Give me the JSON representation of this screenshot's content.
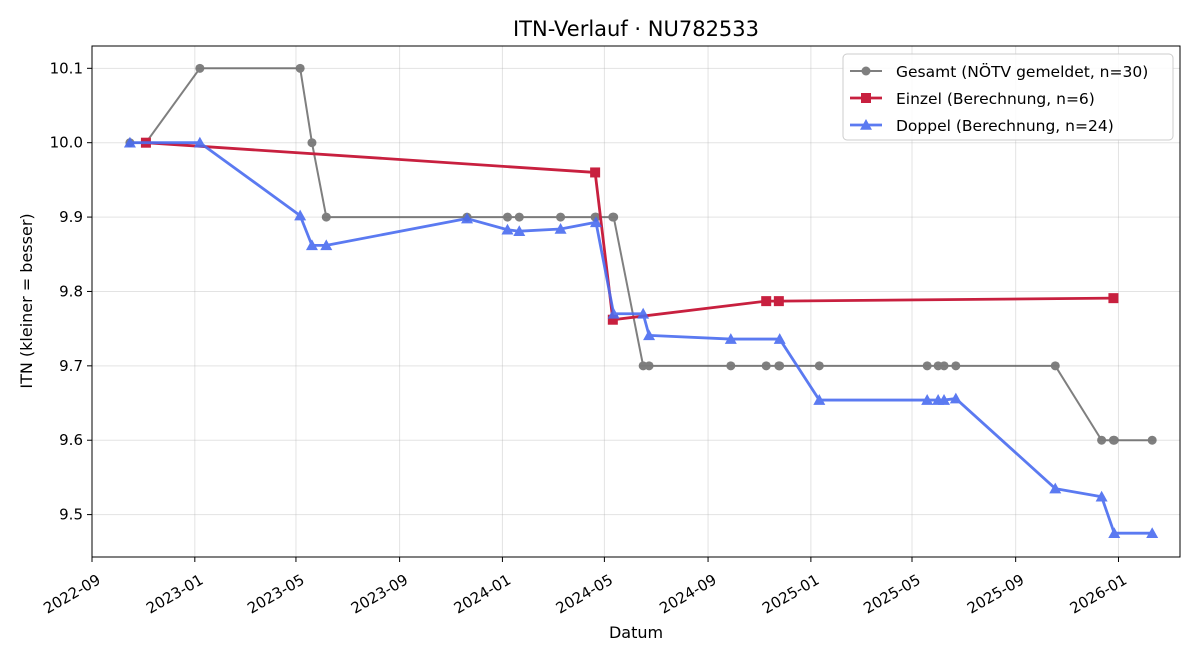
{
  "chart_data": {
    "type": "line",
    "title": "ITN-Verlauf · NU782533",
    "xlabel": "Datum",
    "ylabel": "ITN  (kleiner = besser)",
    "x_axis_type": "date",
    "xlim": [
      "2022-09-01",
      "2026-03-15"
    ],
    "ylim": [
      9.443,
      10.13
    ],
    "x_ticks": [
      {
        "date": "2022-09-01",
        "label": "2022-09"
      },
      {
        "date": "2023-01-01",
        "label": "2023-01"
      },
      {
        "date": "2023-05-01",
        "label": "2023-05"
      },
      {
        "date": "2023-09-01",
        "label": "2023-09"
      },
      {
        "date": "2024-01-01",
        "label": "2024-01"
      },
      {
        "date": "2024-05-01",
        "label": "2024-05"
      },
      {
        "date": "2024-09-01",
        "label": "2024-09"
      },
      {
        "date": "2025-01-01",
        "label": "2025-01"
      },
      {
        "date": "2025-05-01",
        "label": "2025-05"
      },
      {
        "date": "2025-09-01",
        "label": "2025-09"
      },
      {
        "date": "2026-01-01",
        "label": "2026-01"
      }
    ],
    "y_ticks": [
      {
        "value": 9.5,
        "label": "9.5"
      },
      {
        "value": 9.6,
        "label": "9.6"
      },
      {
        "value": 9.7,
        "label": "9.7"
      },
      {
        "value": 9.8,
        "label": "9.8"
      },
      {
        "value": 9.9,
        "label": "9.9"
      },
      {
        "value": 10.0,
        "label": "10.0"
      },
      {
        "value": 10.1,
        "label": "10.1"
      }
    ],
    "grid": true,
    "legend_position": "top-right",
    "series": [
      {
        "name": "Gesamt (NÖTV gemeldet, n=30)",
        "color": "#555555",
        "marker": "circle",
        "points": [
          {
            "x": "2022-10-16",
            "y": 10.0
          },
          {
            "x": "2022-11-04",
            "y": 10.0
          },
          {
            "x": "2023-01-07",
            "y": 10.1
          },
          {
            "x": "2023-05-06",
            "y": 10.1
          },
          {
            "x": "2023-05-20",
            "y": 10.0
          },
          {
            "x": "2023-06-06",
            "y": 9.9
          },
          {
            "x": "2023-11-20",
            "y": 9.9
          },
          {
            "x": "2024-01-07",
            "y": 9.9
          },
          {
            "x": "2024-01-21",
            "y": 9.9
          },
          {
            "x": "2024-03-10",
            "y": 9.9
          },
          {
            "x": "2024-04-20",
            "y": 9.9
          },
          {
            "x": "2024-04-21",
            "y": 9.9
          },
          {
            "x": "2024-05-11",
            "y": 9.9
          },
          {
            "x": "2024-05-12",
            "y": 9.9
          },
          {
            "x": "2024-06-16",
            "y": 9.7
          },
          {
            "x": "2024-06-23",
            "y": 9.7
          },
          {
            "x": "2024-09-28",
            "y": 9.7
          },
          {
            "x": "2024-11-09",
            "y": 9.7
          },
          {
            "x": "2024-11-24",
            "y": 9.7
          },
          {
            "x": "2024-11-25",
            "y": 9.7
          },
          {
            "x": "2025-01-11",
            "y": 9.7
          },
          {
            "x": "2025-05-19",
            "y": 9.7
          },
          {
            "x": "2025-06-01",
            "y": 9.7
          },
          {
            "x": "2025-06-08",
            "y": 9.7
          },
          {
            "x": "2025-06-22",
            "y": 9.7
          },
          {
            "x": "2025-10-18",
            "y": 9.7
          },
          {
            "x": "2025-12-12",
            "y": 9.6
          },
          {
            "x": "2025-12-26",
            "y": 9.6
          },
          {
            "x": "2025-12-27",
            "y": 9.6
          },
          {
            "x": "2026-02-10",
            "y": 9.6
          }
        ]
      },
      {
        "name": "Einzel (Berechnung, n=6)",
        "color": "#c8203f",
        "marker": "square",
        "points": [
          {
            "x": "2022-11-04",
            "y": 10.0
          },
          {
            "x": "2024-04-20",
            "y": 9.96
          },
          {
            "x": "2024-05-11",
            "y": 9.762
          },
          {
            "x": "2024-11-09",
            "y": 9.787
          },
          {
            "x": "2024-11-24",
            "y": 9.787
          },
          {
            "x": "2025-12-26",
            "y": 9.791
          }
        ]
      },
      {
        "name": "Doppel (Berechnung, n=24)",
        "color": "#4a6cf0",
        "marker": "triangle",
        "points": [
          {
            "x": "2022-10-16",
            "y": 10.0
          },
          {
            "x": "2023-01-07",
            "y": 10.0
          },
          {
            "x": "2023-05-06",
            "y": 9.902
          },
          {
            "x": "2023-05-20",
            "y": 9.862
          },
          {
            "x": "2023-06-06",
            "y": 9.862
          },
          {
            "x": "2023-11-20",
            "y": 9.898
          },
          {
            "x": "2024-01-07",
            "y": 9.883
          },
          {
            "x": "2024-01-21",
            "y": 9.881
          },
          {
            "x": "2024-03-10",
            "y": 9.884
          },
          {
            "x": "2024-04-21",
            "y": 9.893
          },
          {
            "x": "2024-05-12",
            "y": 9.77
          },
          {
            "x": "2024-06-16",
            "y": 9.77
          },
          {
            "x": "2024-06-23",
            "y": 9.741
          },
          {
            "x": "2024-09-28",
            "y": 9.736
          },
          {
            "x": "2024-11-25",
            "y": 9.736
          },
          {
            "x": "2025-01-11",
            "y": 9.654
          },
          {
            "x": "2025-05-19",
            "y": 9.654
          },
          {
            "x": "2025-06-01",
            "y": 9.654
          },
          {
            "x": "2025-06-08",
            "y": 9.654
          },
          {
            "x": "2025-06-22",
            "y": 9.656
          },
          {
            "x": "2025-10-18",
            "y": 9.535
          },
          {
            "x": "2025-12-12",
            "y": 9.524
          },
          {
            "x": "2025-12-27",
            "y": 9.475
          },
          {
            "x": "2026-02-10",
            "y": 9.475
          }
        ]
      }
    ]
  }
}
